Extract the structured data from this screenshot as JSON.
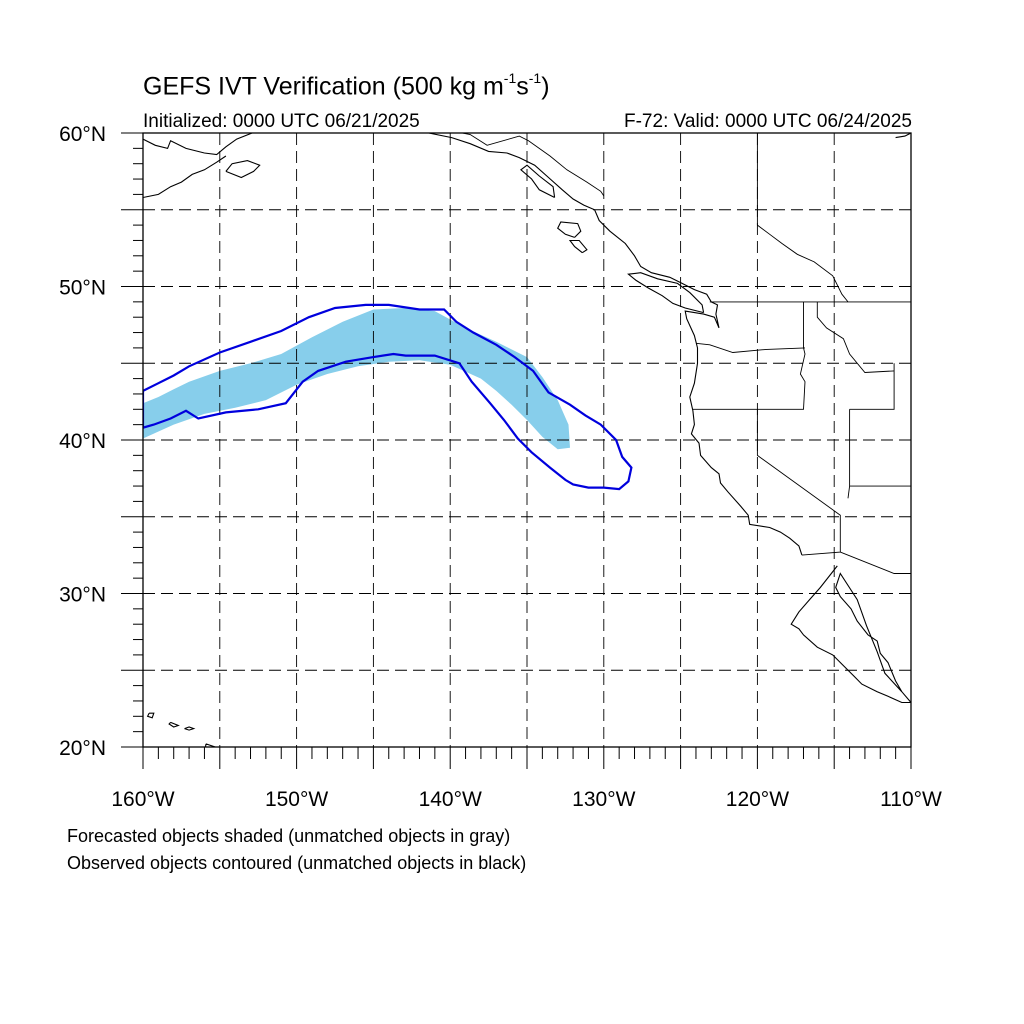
{
  "title": {
    "text": "GEFS IVT Verification (500 kg m",
    "exp1": "-1",
    "mid": "s",
    "exp2": "-1",
    "close": ")"
  },
  "subtitle": {
    "left": "Initialized: 0000 UTC 06/21/2025",
    "right": "F-72: Valid: 0000 UTC 06/24/2025"
  },
  "notes": [
    "Forecasted objects shaded (unmatched objects in gray)",
    "Observed objects contoured (unmatched objects in black)"
  ],
  "map": {
    "lon_range": [
      -160,
      -110
    ],
    "lat_range": [
      20,
      60
    ],
    "grid_interval_deg": 5,
    "lon_ticks": [
      {
        "value": -160,
        "label": "160°W"
      },
      {
        "value": -150,
        "label": "150°W"
      },
      {
        "value": -140,
        "label": "140°W"
      },
      {
        "value": -130,
        "label": "130°W"
      },
      {
        "value": -120,
        "label": "120°W"
      },
      {
        "value": -110,
        "label": "110°W"
      }
    ],
    "lat_ticks": [
      {
        "value": 20,
        "label": "20°N"
      },
      {
        "value": 30,
        "label": "30°N"
      },
      {
        "value": 40,
        "label": "40°N"
      },
      {
        "value": 50,
        "label": "50°N"
      },
      {
        "value": 60,
        "label": "60°N"
      }
    ],
    "colors": {
      "forecast_fill": "#87ceeb",
      "observed_contour": "#0000dd",
      "coast": "#000000",
      "grid": "#000000"
    },
    "forecast_object": [
      [
        -160,
        42.4
      ],
      [
        -159,
        42.8
      ],
      [
        -158,
        43.3
      ],
      [
        -157,
        43.8
      ],
      [
        -155,
        44.5
      ],
      [
        -153,
        45.0
      ],
      [
        -151,
        45.6
      ],
      [
        -149,
        46.7
      ],
      [
        -147,
        47.7
      ],
      [
        -145,
        48.5
      ],
      [
        -143,
        48.6
      ],
      [
        -141,
        48.4
      ],
      [
        -139,
        47.3
      ],
      [
        -137,
        46.4
      ],
      [
        -135,
        45.4
      ],
      [
        -134,
        44.1
      ],
      [
        -133,
        42.6
      ],
      [
        -132.3,
        41.0
      ],
      [
        -132.2,
        39.5
      ],
      [
        -133,
        39.4
      ],
      [
        -134,
        40.2
      ],
      [
        -135,
        41.3
      ],
      [
        -136,
        42.3
      ],
      [
        -137,
        43.2
      ],
      [
        -138,
        44.0
      ],
      [
        -140,
        44.9
      ],
      [
        -142,
        45.2
      ],
      [
        -144,
        45.1
      ],
      [
        -146,
        44.8
      ],
      [
        -148,
        44.3
      ],
      [
        -150,
        43.6
      ],
      [
        -152,
        42.6
      ],
      [
        -154,
        42.1
      ],
      [
        -156,
        41.7
      ],
      [
        -158,
        41.0
      ],
      [
        -160,
        40.1
      ]
    ],
    "observed_object": [
      [
        -160,
        43.2
      ],
      [
        -159,
        43.7
      ],
      [
        -158,
        44.2
      ],
      [
        -157,
        44.8
      ],
      [
        -155,
        45.7
      ],
      [
        -153,
        46.4
      ],
      [
        -151,
        47.1
      ],
      [
        -149.2,
        48.0
      ],
      [
        -147.5,
        48.6
      ],
      [
        -145.5,
        48.8
      ],
      [
        -144,
        48.8
      ],
      [
        -142,
        48.5
      ],
      [
        -140.4,
        48.5
      ],
      [
        -139.6,
        47.7
      ],
      [
        -138.5,
        47.0
      ],
      [
        -137,
        46.2
      ],
      [
        -135.8,
        45.4
      ],
      [
        -134.6,
        44.5
      ],
      [
        -133.6,
        43.1
      ],
      [
        -132.2,
        42.3
      ],
      [
        -131.2,
        41.6
      ],
      [
        -130.2,
        41.0
      ],
      [
        -129.2,
        40.0
      ],
      [
        -128.8,
        38.9
      ],
      [
        -128.2,
        38.2
      ],
      [
        -128.4,
        37.3
      ],
      [
        -129,
        36.8
      ],
      [
        -130,
        36.9
      ],
      [
        -131,
        36.9
      ],
      [
        -132,
        37.1
      ],
      [
        -132.5,
        37.4
      ],
      [
        -133.5,
        38.2
      ],
      [
        -134.7,
        39.2
      ],
      [
        -135.6,
        40.1
      ],
      [
        -136.5,
        41.3
      ],
      [
        -137.4,
        42.4
      ],
      [
        -138.6,
        43.8
      ],
      [
        -139.4,
        45.0
      ],
      [
        -141,
        45.5
      ],
      [
        -142.9,
        45.5
      ],
      [
        -143.7,
        45.6
      ],
      [
        -145,
        45.4
      ],
      [
        -146.8,
        45.1
      ],
      [
        -148.6,
        44.5
      ],
      [
        -149.6,
        43.8
      ],
      [
        -150.7,
        42.4
      ],
      [
        -152.5,
        42.0
      ],
      [
        -154.6,
        41.8
      ],
      [
        -156.4,
        41.4
      ],
      [
        -157.2,
        41.9
      ],
      [
        -158.2,
        41.4
      ],
      [
        -159.3,
        41.0
      ],
      [
        -160,
        40.8
      ]
    ],
    "coastlines": [
      [
        [
          -110,
          22.9
        ],
        [
          -110.6,
          23.6
        ],
        [
          -111.7,
          24.8
        ],
        [
          -112.2,
          26.2
        ],
        [
          -112.9,
          27.9
        ],
        [
          -113.5,
          29.6
        ],
        [
          -114.6,
          31.3
        ],
        [
          -114.9,
          30.4
        ],
        [
          -114.6,
          29.8
        ],
        [
          -113.9,
          29.0
        ],
        [
          -113.5,
          28.2
        ],
        [
          -112.8,
          27.3
        ],
        [
          -112.2,
          26.9
        ],
        [
          -112,
          26.1
        ],
        [
          -111.5,
          25.5
        ],
        [
          -111,
          24.3
        ],
        [
          -110.6,
          23.6
        ]
      ],
      [
        [
          -114.8,
          31.8
        ],
        [
          -115.9,
          30.4
        ],
        [
          -116.6,
          29.6
        ],
        [
          -117.3,
          28.8
        ],
        [
          -117.8,
          28.0
        ],
        [
          -117.3,
          27.7
        ],
        [
          -117.0,
          27.3
        ],
        [
          -116.1,
          26.5
        ],
        [
          -115.1,
          26.0
        ],
        [
          -114.5,
          25.4
        ],
        [
          -113.7,
          24.6
        ],
        [
          -113.2,
          24.1
        ],
        [
          -112.2,
          23.6
        ],
        [
          -111.5,
          23.3
        ],
        [
          -110.6,
          22.9
        ],
        [
          -109.9,
          22.9
        ]
      ],
      [
        [
          -117.1,
          32.5
        ],
        [
          -117.3,
          33.1
        ],
        [
          -117.9,
          33.6
        ],
        [
          -118.5,
          34.0
        ],
        [
          -119.2,
          34.3
        ],
        [
          -120.5,
          34.5
        ],
        [
          -120.6,
          35.1
        ],
        [
          -121.1,
          35.7
        ],
        [
          -121.9,
          36.6
        ],
        [
          -122.4,
          37.2
        ],
        [
          -122.5,
          37.8
        ],
        [
          -123.0,
          38.2
        ],
        [
          -123.7,
          39.0
        ],
        [
          -123.8,
          39.8
        ],
        [
          -124.3,
          40.4
        ],
        [
          -124.1,
          41.0
        ],
        [
          -124.2,
          41.9
        ],
        [
          -124.4,
          42.8
        ],
        [
          -124.1,
          43.7
        ],
        [
          -123.9,
          45.0
        ],
        [
          -123.9,
          46.0
        ],
        [
          -124.1,
          46.8
        ],
        [
          -124.6,
          47.9
        ],
        [
          -124.7,
          48.4
        ],
        [
          -123.5,
          48.2
        ],
        [
          -122.8,
          48.0
        ],
        [
          -122.5,
          47.3
        ],
        [
          -122.7,
          48.2
        ],
        [
          -122.6,
          48.8
        ],
        [
          -123.0,
          49.0
        ],
        [
          -123.3,
          49.5
        ],
        [
          -124.1,
          49.8
        ],
        [
          -124.9,
          50.2
        ],
        [
          -125.7,
          50.6
        ],
        [
          -126.9,
          50.9
        ],
        [
          -127.6,
          51.3
        ],
        [
          -128.0,
          52.0
        ],
        [
          -128.6,
          52.8
        ],
        [
          -129.6,
          53.6
        ],
        [
          -130.3,
          54.3
        ],
        [
          -130.6,
          55.0
        ],
        [
          -131.3,
          55.3
        ],
        [
          -132.0,
          55.7
        ],
        [
          -132.7,
          56.3
        ],
        [
          -133.6,
          57.1
        ],
        [
          -134.5,
          57.9
        ],
        [
          -135.5,
          58.4
        ],
        [
          -136.3,
          58.7
        ],
        [
          -137.5,
          58.8
        ],
        [
          -138.7,
          59.3
        ],
        [
          -139.9,
          59.7
        ],
        [
          -141.4,
          60.0
        ]
      ],
      [
        [
          -123.5,
          48.3
        ],
        [
          -124.7,
          48.6
        ],
        [
          -125.5,
          48.9
        ],
        [
          -126.2,
          49.4
        ],
        [
          -127.1,
          49.9
        ],
        [
          -127.9,
          50.4
        ],
        [
          -128.4,
          50.8
        ],
        [
          -127.6,
          50.9
        ],
        [
          -126.5,
          50.5
        ],
        [
          -125.2,
          50.2
        ],
        [
          -124.4,
          49.6
        ],
        [
          -123.6,
          48.8
        ],
        [
          -123.5,
          48.3
        ]
      ],
      [
        [
          -131.9,
          53.2
        ],
        [
          -132.5,
          53.4
        ],
        [
          -133.0,
          53.8
        ],
        [
          -132.8,
          54.2
        ],
        [
          -131.7,
          54.1
        ],
        [
          -131.5,
          53.6
        ],
        [
          -131.9,
          53.2
        ]
      ],
      [
        [
          -131.4,
          52.2
        ],
        [
          -131.9,
          52.6
        ],
        [
          -132.2,
          53.0
        ],
        [
          -131.6,
          53.0
        ],
        [
          -131.1,
          52.4
        ],
        [
          -131.4,
          52.2
        ]
      ],
      [
        [
          -133.2,
          55.8
        ],
        [
          -134.2,
          56.3
        ],
        [
          -134.7,
          57.0
        ],
        [
          -135.4,
          57.6
        ],
        [
          -135.0,
          57.9
        ],
        [
          -134.2,
          57.2
        ],
        [
          -133.3,
          56.5
        ],
        [
          -133.2,
          55.8
        ]
      ],
      [
        [
          -155.9,
          20.2
        ],
        [
          -155.3,
          20.0
        ],
        [
          -154.8,
          19.5
        ],
        [
          -155.5,
          19.0
        ],
        [
          -156.0,
          19.6
        ],
        [
          -155.9,
          20.2
        ]
      ],
      [
        [
          -157.3,
          21.2
        ],
        [
          -157.0,
          21.1
        ],
        [
          -156.7,
          21.2
        ],
        [
          -157.0,
          21.3
        ],
        [
          -157.3,
          21.2
        ]
      ],
      [
        [
          -158.2,
          21.6
        ],
        [
          -157.7,
          21.4
        ],
        [
          -158.0,
          21.3
        ],
        [
          -158.3,
          21.5
        ],
        [
          -158.2,
          21.6
        ]
      ],
      [
        [
          -159.6,
          22.2
        ],
        [
          -159.3,
          22.2
        ],
        [
          -159.4,
          21.9
        ],
        [
          -159.7,
          22.0
        ],
        [
          -159.6,
          22.2
        ]
      ],
      [
        [
          -160,
          59.6
        ],
        [
          -159.2,
          59.2
        ],
        [
          -158.4,
          59.0
        ],
        [
          -158.2,
          59.5
        ],
        [
          -157.2,
          59.0
        ],
        [
          -156.0,
          58.7
        ],
        [
          -155.2,
          58.6
        ],
        [
          -154.6,
          59.1
        ],
        [
          -153.9,
          59.6
        ],
        [
          -152.9,
          60.0
        ]
      ],
      [
        [
          -160,
          55.8
        ],
        [
          -159.0,
          56.0
        ],
        [
          -158.2,
          56.5
        ],
        [
          -157.5,
          56.8
        ],
        [
          -156.8,
          57.3
        ],
        [
          -156.0,
          57.6
        ],
        [
          -155.2,
          58.1
        ],
        [
          -154.6,
          58.5
        ]
      ],
      [
        [
          -154.6,
          57.5
        ],
        [
          -153.6,
          57.1
        ],
        [
          -152.8,
          57.5
        ],
        [
          -152.4,
          57.9
        ],
        [
          -153.2,
          58.2
        ],
        [
          -154.2,
          58.0
        ],
        [
          -154.6,
          57.5
        ]
      ],
      [
        [
          -110,
          60
        ],
        [
          -110.4,
          59.8
        ],
        [
          -111,
          59.7
        ]
      ]
    ],
    "borders": [
      [
        [
          -123.1,
          49
        ],
        [
          -110,
          49
        ]
      ],
      [
        [
          -117,
          49
        ],
        [
          -117,
          46
        ],
        [
          -116.9,
          45.6
        ],
        [
          -117.2,
          44.3
        ],
        [
          -116.9,
          43.8
        ],
        [
          -117,
          42
        ],
        [
          -124.2,
          42
        ]
      ],
      [
        [
          -124,
          46.3
        ],
        [
          -123.1,
          46.2
        ],
        [
          -121.6,
          45.7
        ],
        [
          -119.4,
          45.9
        ],
        [
          -116.9,
          46.0
        ]
      ],
      [
        [
          -120,
          42
        ],
        [
          -120,
          39
        ],
        [
          -114.6,
          35.1
        ],
        [
          -114.6,
          32.7
        ],
        [
          -117.1,
          32.5
        ]
      ],
      [
        [
          -114.6,
          32.7
        ],
        [
          -111.1,
          31.3
        ],
        [
          -108.2,
          31.3
        ]
      ],
      [
        [
          -116.1,
          49
        ],
        [
          -116.1,
          48
        ],
        [
          -115.5,
          47.3
        ],
        [
          -114.4,
          46.6
        ],
        [
          -114,
          45.6
        ],
        [
          -113,
          44.4
        ],
        [
          -111.1,
          44.5
        ]
      ],
      [
        [
          -114,
          42
        ],
        [
          -114,
          37
        ],
        [
          -114.1,
          36.2
        ]
      ],
      [
        [
          -111.1,
          45
        ],
        [
          -111.1,
          42
        ],
        [
          -114,
          42
        ]
      ],
      [
        [
          -114,
          37
        ],
        [
          -109,
          37
        ]
      ],
      [
        [
          -120,
          54
        ],
        [
          -119.2,
          53.4
        ],
        [
          -118.4,
          52.8
        ],
        [
          -117.4,
          52.1
        ],
        [
          -116.3,
          51.6
        ],
        [
          -115.1,
          50.7
        ],
        [
          -114.5,
          49.5
        ],
        [
          -114.1,
          49
        ]
      ],
      [
        [
          -120,
          60
        ],
        [
          -120,
          54
        ]
      ],
      [
        [
          -110,
          60
        ],
        [
          -110,
          49
        ]
      ],
      [
        [
          -130,
          55.9
        ],
        [
          -130.2,
          56.2
        ],
        [
          -131.1,
          56.8
        ],
        [
          -132.4,
          57.6
        ],
        [
          -133.5,
          58.5
        ],
        [
          -134.9,
          59.5
        ],
        [
          -135.5,
          59.8
        ],
        [
          -137.6,
          59.2
        ],
        [
          -138.7,
          59.9
        ],
        [
          -139.2,
          60
        ],
        [
          -141,
          60
        ]
      ]
    ]
  }
}
